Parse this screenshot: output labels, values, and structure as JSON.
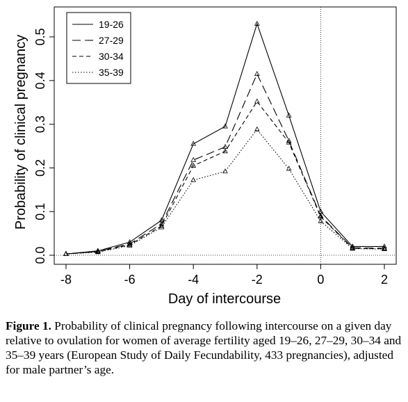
{
  "chart_data": {
    "type": "line",
    "xlabel": "Day of intercourse",
    "ylabel": "Probability of clinical pregnancy",
    "xlim": [
      -8,
      2
    ],
    "ylim": [
      0,
      0.5
    ],
    "xticks": [
      "-8",
      "-6",
      "-4",
      "-2",
      "0",
      "2"
    ],
    "yticks": [
      "0.0",
      "0.1",
      "0.2",
      "0.3",
      "0.4",
      "0.5"
    ],
    "grid": false,
    "legend_position": "top-left",
    "reference_line": {
      "axis": "x",
      "value": 0,
      "style": "dotted"
    },
    "x": [
      -8,
      -7,
      -6,
      -5,
      -4,
      -3,
      -2,
      -1,
      0,
      1,
      2
    ],
    "series": [
      {
        "name": "19-26",
        "line_style": "solid",
        "values": [
          0.003,
          0.01,
          0.03,
          0.08,
          0.255,
          0.295,
          0.53,
          0.32,
          0.1,
          0.02,
          0.02
        ]
      },
      {
        "name": "27-29",
        "line_style": "long-dash",
        "values": [
          0.003,
          0.009,
          0.026,
          0.072,
          0.218,
          0.248,
          0.415,
          0.262,
          0.09,
          0.017,
          0.016
        ]
      },
      {
        "name": "30-34",
        "line_style": "dash",
        "values": [
          0.003,
          0.008,
          0.024,
          0.067,
          0.205,
          0.238,
          0.352,
          0.258,
          0.088,
          0.016,
          0.015
        ]
      },
      {
        "name": "35-39",
        "line_style": "dotted",
        "values": [
          0.003,
          0.007,
          0.022,
          0.064,
          0.172,
          0.192,
          0.288,
          0.198,
          0.078,
          0.015,
          0.014
        ]
      }
    ]
  },
  "caption": {
    "label": "Figure 1.",
    "text": "Probability of clinical pregnancy following intercourse on a given day relative to ovulation for women of average fertility aged 19–26, 27–29, 30–34 and 35–39 years (European Study of Daily Fecundability, 433 pregnancies), adjusted for male partner’s age."
  }
}
